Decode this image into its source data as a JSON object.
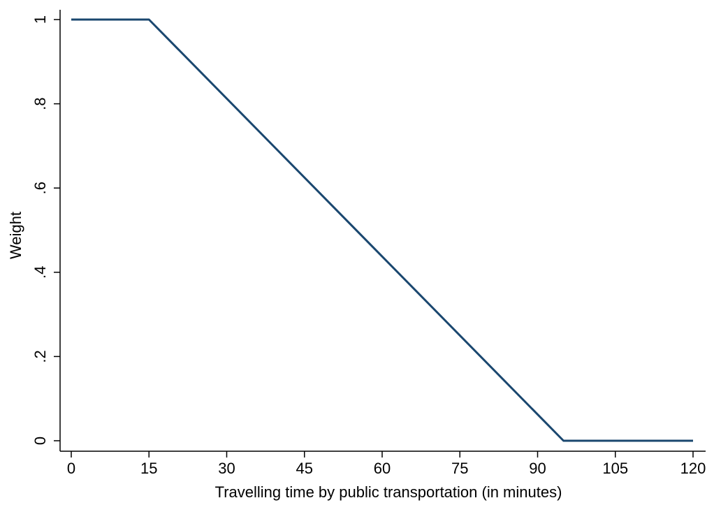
{
  "chart_data": {
    "type": "line",
    "title": "",
    "xlabel": "Travelling time by public transportation (in minutes)",
    "ylabel": "Weight",
    "xlim": [
      0,
      120
    ],
    "ylim": [
      0,
      1
    ],
    "xticks": [
      0,
      15,
      30,
      45,
      60,
      75,
      90,
      105,
      120
    ],
    "xtick_labels": [
      "0",
      "15",
      "30",
      "45",
      "60",
      "75",
      "90",
      "105",
      "120"
    ],
    "yticks": [
      0,
      0.2,
      0.4,
      0.6,
      0.8,
      1
    ],
    "ytick_labels": [
      "0",
      ".2",
      ".4",
      ".6",
      ".8",
      "1"
    ],
    "grid": false,
    "legend": "none",
    "series": [
      {
        "color": "#1a476f",
        "x": [
          0,
          15,
          95,
          120
        ],
        "y": [
          1,
          1,
          0,
          0
        ]
      }
    ]
  }
}
